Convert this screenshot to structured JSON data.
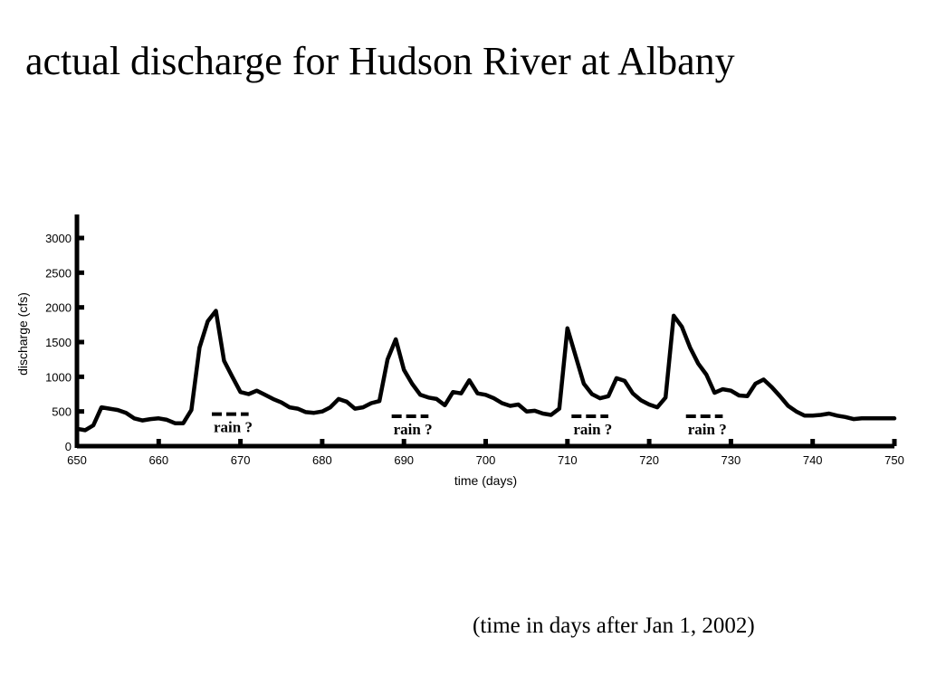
{
  "slide": {
    "title": "actual discharge for Hudson River at Albany",
    "note": "(time in days after Jan 1, 2002)"
  },
  "chart_data": {
    "type": "line",
    "title": "",
    "xlabel": "time (days)",
    "ylabel": "discharge (cfs)",
    "xlim": [
      650,
      750
    ],
    "ylim": [
      0,
      3300
    ],
    "xticks": [
      650,
      660,
      670,
      680,
      690,
      700,
      710,
      720,
      730,
      740,
      750
    ],
    "yticks": [
      0,
      500,
      1000,
      1500,
      2000,
      2500,
      3000
    ],
    "grid": false,
    "legend": "none",
    "line_color": "#000000",
    "series": [
      {
        "x": [
          650,
          651,
          652,
          653,
          654,
          655,
          656,
          657,
          658,
          659,
          660,
          661,
          662,
          663,
          664,
          665,
          666,
          667,
          668,
          669,
          670,
          671,
          672,
          673,
          674,
          675,
          676,
          677,
          678,
          679,
          680,
          681,
          682,
          683,
          684,
          685,
          686,
          687,
          688,
          689,
          690,
          691,
          692,
          693,
          694,
          695,
          696,
          697,
          698,
          699,
          700,
          701,
          702,
          703,
          704,
          705,
          706,
          707,
          708,
          709,
          710,
          711,
          712,
          713,
          714,
          715,
          716,
          717,
          718,
          719,
          720,
          721,
          722,
          723,
          724,
          725,
          726,
          727,
          728,
          729,
          730,
          731,
          732,
          733,
          734,
          735,
          736,
          737,
          738,
          739,
          740,
          741,
          742,
          743,
          744,
          745,
          746,
          747,
          748,
          749,
          750
        ],
        "y": [
          250,
          230,
          300,
          560,
          540,
          520,
          480,
          400,
          370,
          390,
          400,
          380,
          330,
          330,
          520,
          1420,
          1800,
          1950,
          1230,
          1000,
          780,
          750,
          800,
          740,
          680,
          630,
          560,
          540,
          490,
          480,
          500,
          560,
          680,
          640,
          540,
          560,
          620,
          650,
          1250,
          1540,
          1100,
          900,
          740,
          700,
          680,
          590,
          780,
          760,
          950,
          760,
          740,
          690,
          620,
          580,
          600,
          500,
          510,
          470,
          450,
          540,
          1700,
          1300,
          900,
          750,
          690,
          720,
          980,
          940,
          760,
          660,
          600,
          560,
          700,
          1880,
          1720,
          1420,
          1190,
          1030,
          770,
          820,
          800,
          730,
          720,
          900,
          960,
          850,
          720,
          580,
          500,
          440,
          440,
          450,
          470,
          440,
          420,
          390,
          400,
          400,
          400,
          400,
          400
        ]
      }
    ],
    "annotations": [
      {
        "label": "rain ?",
        "x_start": 666.5,
        "x_end": 671,
        "y": 500
      },
      {
        "label": "rain ?",
        "x_start": 688.5,
        "x_end": 693,
        "y": 470
      },
      {
        "label": "rain ?",
        "x_start": 710.5,
        "x_end": 715,
        "y": 470
      },
      {
        "label": "rain ?",
        "x_start": 724.5,
        "x_end": 729,
        "y": 470
      }
    ]
  }
}
